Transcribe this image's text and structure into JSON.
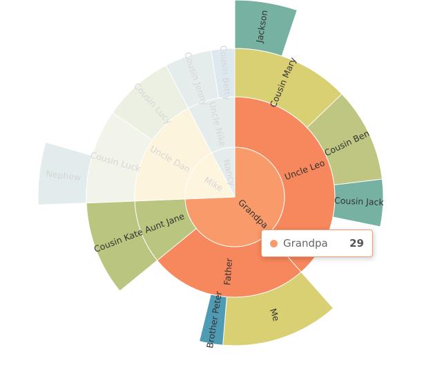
{
  "chart_data": {
    "type": "sunburst",
    "data": [
      {
        "name": "Grandpa",
        "value": 29,
        "color": "#f89a6a",
        "children": [
          {
            "name": "Uncle Leo",
            "value": 15,
            "color": "#f7875c",
            "children": [
              {
                "name": "Cousin Mary",
                "value": 5,
                "color": "#d9cf73",
                "children": [
                  {
                    "name": "Jackson",
                    "value": 2,
                    "color": "#77b1a2"
                  }
                ]
              },
              {
                "name": "Cousin Ben",
                "value": 4,
                "color": "#bec681"
              },
              {
                "name": "Cousin Jack",
                "value": 2,
                "color": "#77b1a2"
              }
            ]
          },
          {
            "name": "Father",
            "value": 10,
            "color": "#f7875c",
            "children": [
              {
                "name": "Me",
                "value": 5,
                "color": "#d9cf73"
              },
              {
                "name": "Brother Peter",
                "value": 1,
                "color": "#4f9bb4"
              }
            ]
          },
          {
            "name": "Aunt Jane",
            "value": 4,
            "color": "#bac67f",
            "children": [
              {
                "name": "Cousin Kate",
                "value": 4,
                "color": "#bac67f"
              }
            ]
          }
        ]
      },
      {
        "name": "Mike",
        "value": 7,
        "color": "#fef5df",
        "downplayed": true,
        "children": [
          {
            "name": "Uncle Dan",
            "value": 7,
            "color": "#fdf4de",
            "downplayed": true,
            "children": [
              {
                "name": "Cousin Luck",
                "value": 4,
                "color": "#f2f4e9",
                "downplayed": true,
                "children": [
                  {
                    "name": "Nephew",
                    "value": 2,
                    "color": "#e3ecec",
                    "downplayed": true
                  }
                ]
              },
              {
                "name": "Cousin Lucy",
                "value": 3,
                "color": "#ecf0e3",
                "downplayed": true
              }
            ]
          }
        ]
      },
      {
        "name": "Nancy",
        "value": 3,
        "color": "#e4ecec",
        "downplayed": true,
        "children": [
          {
            "name": "Uncle Nike",
            "value": 3,
            "color": "#e4ecec",
            "downplayed": true,
            "children": [
              {
                "name": "Cousin Jenny",
                "value": 2,
                "color": "#e4ecec",
                "downplayed": true
              },
              {
                "name": "Cousin Betty",
                "value": 1,
                "color": "#dee9ef",
                "downplayed": true
              }
            ]
          }
        ]
      }
    ]
  }
}
